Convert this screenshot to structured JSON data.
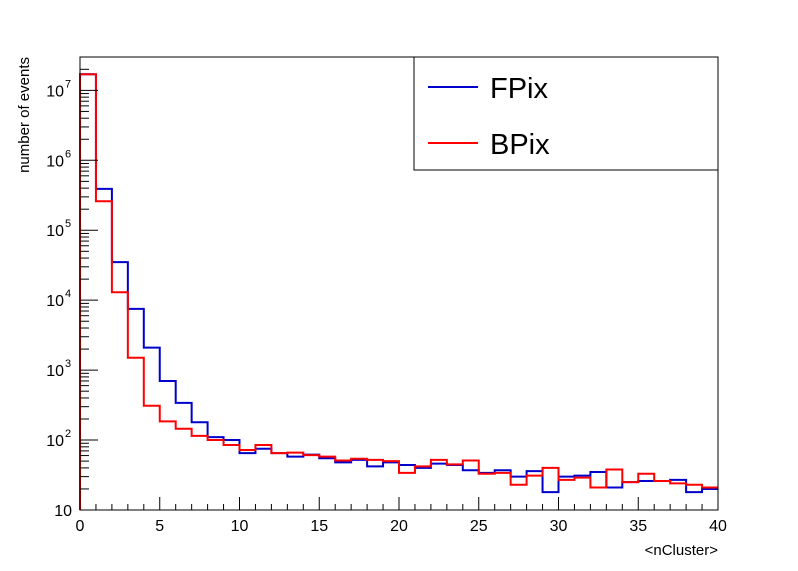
{
  "chart_data": {
    "type": "step-histogram",
    "xlabel": "<nCluster>",
    "ylabel": "number of events",
    "xlim": [
      0,
      40
    ],
    "ylim": [
      10,
      30000000
    ],
    "y_scale": "log",
    "grid": false,
    "legend_position": "top-right",
    "x_ticks": [
      0,
      5,
      10,
      15,
      20,
      25,
      30,
      35,
      40
    ],
    "y_ticks": [
      {
        "value": 10,
        "label": "10",
        "exp": ""
      },
      {
        "value": 100,
        "label": "10",
        "exp": "2"
      },
      {
        "value": 1000,
        "label": "10",
        "exp": "3"
      },
      {
        "value": 10000,
        "label": "10",
        "exp": "4"
      },
      {
        "value": 100000,
        "label": "10",
        "exp": "5"
      },
      {
        "value": 1000000,
        "label": "10",
        "exp": "6"
      },
      {
        "value": 10000000,
        "label": "10",
        "exp": "7"
      }
    ],
    "bin_edges_start": 0,
    "bin_width": 1,
    "series": [
      {
        "name": "FPix",
        "color": "#0000cc",
        "values": [
          17000000,
          390000,
          35000,
          7500,
          2100,
          700,
          340,
          180,
          110,
          100,
          65,
          75,
          65,
          58,
          62,
          55,
          48,
          52,
          42,
          48,
          44,
          40,
          46,
          44,
          37,
          34,
          37,
          30,
          36,
          18,
          30,
          31,
          35,
          21,
          25,
          26,
          26,
          27,
          18,
          20
        ]
      },
      {
        "name": "BPix",
        "color": "#ff0000",
        "values": [
          17000000,
          260000,
          13000,
          1500,
          310,
          185,
          145,
          115,
          100,
          85,
          72,
          85,
          65,
          66,
          61,
          58,
          51,
          54,
          52,
          50,
          34,
          42,
          52,
          45,
          51,
          33,
          34,
          23,
          31,
          40,
          27,
          29,
          21,
          38,
          25,
          33,
          26,
          24,
          23,
          21
        ]
      }
    ]
  }
}
